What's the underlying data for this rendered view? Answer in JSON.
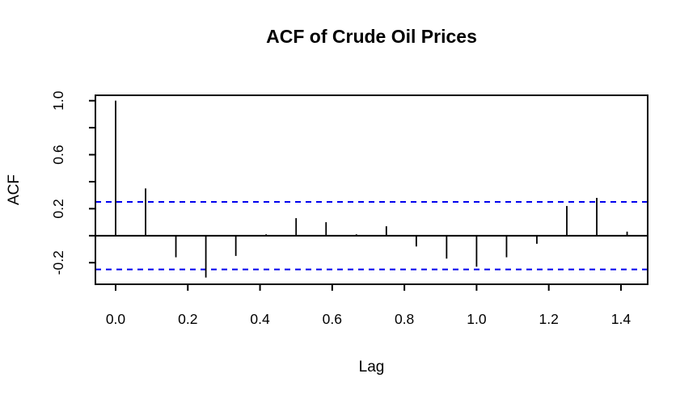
{
  "chart_data": {
    "type": "bar",
    "subtype": "acf-stem-plot",
    "title": "ACF of Crude Oil Prices",
    "xlabel": "Lag",
    "ylabel": "ACF",
    "x": [
      0.0,
      0.083,
      0.167,
      0.25,
      0.333,
      0.417,
      0.5,
      0.583,
      0.667,
      0.75,
      0.833,
      0.917,
      1.0,
      1.083,
      1.167,
      1.25,
      1.333,
      1.417
    ],
    "values": [
      1.0,
      0.35,
      -0.16,
      -0.31,
      -0.15,
      0.01,
      0.13,
      0.1,
      0.01,
      0.07,
      -0.08,
      -0.17,
      -0.23,
      -0.16,
      -0.06,
      0.22,
      0.28,
      0.03
    ],
    "confidence_bound": 0.25,
    "confidence_line_style": "dashed",
    "confidence_line_color": "#0000EE",
    "bar_color": "#000000",
    "axis_color": "#000000",
    "xlim": [
      -0.056,
      1.474
    ],
    "ylim": [
      -0.36,
      1.04
    ],
    "x_ticks": [
      {
        "v": 0.0,
        "label": "0.0"
      },
      {
        "v": 0.2,
        "label": "0.2"
      },
      {
        "v": 0.4,
        "label": "0.4"
      },
      {
        "v": 0.6,
        "label": "0.6"
      },
      {
        "v": 0.8,
        "label": "0.8"
      },
      {
        "v": 1.0,
        "label": "1.0"
      },
      {
        "v": 1.2,
        "label": "1.2"
      },
      {
        "v": 1.4,
        "label": "1.4"
      }
    ],
    "y_ticks": [
      {
        "v": -0.2,
        "label": "-0.2"
      },
      {
        "v": 0.0,
        "label": ""
      },
      {
        "v": 0.2,
        "label": "0.2"
      },
      {
        "v": 0.4,
        "label": ""
      },
      {
        "v": 0.6,
        "label": "0.6"
      },
      {
        "v": 0.8,
        "label": ""
      },
      {
        "v": 1.0,
        "label": "1.0"
      }
    ],
    "grid": false,
    "legend_position": "none"
  }
}
